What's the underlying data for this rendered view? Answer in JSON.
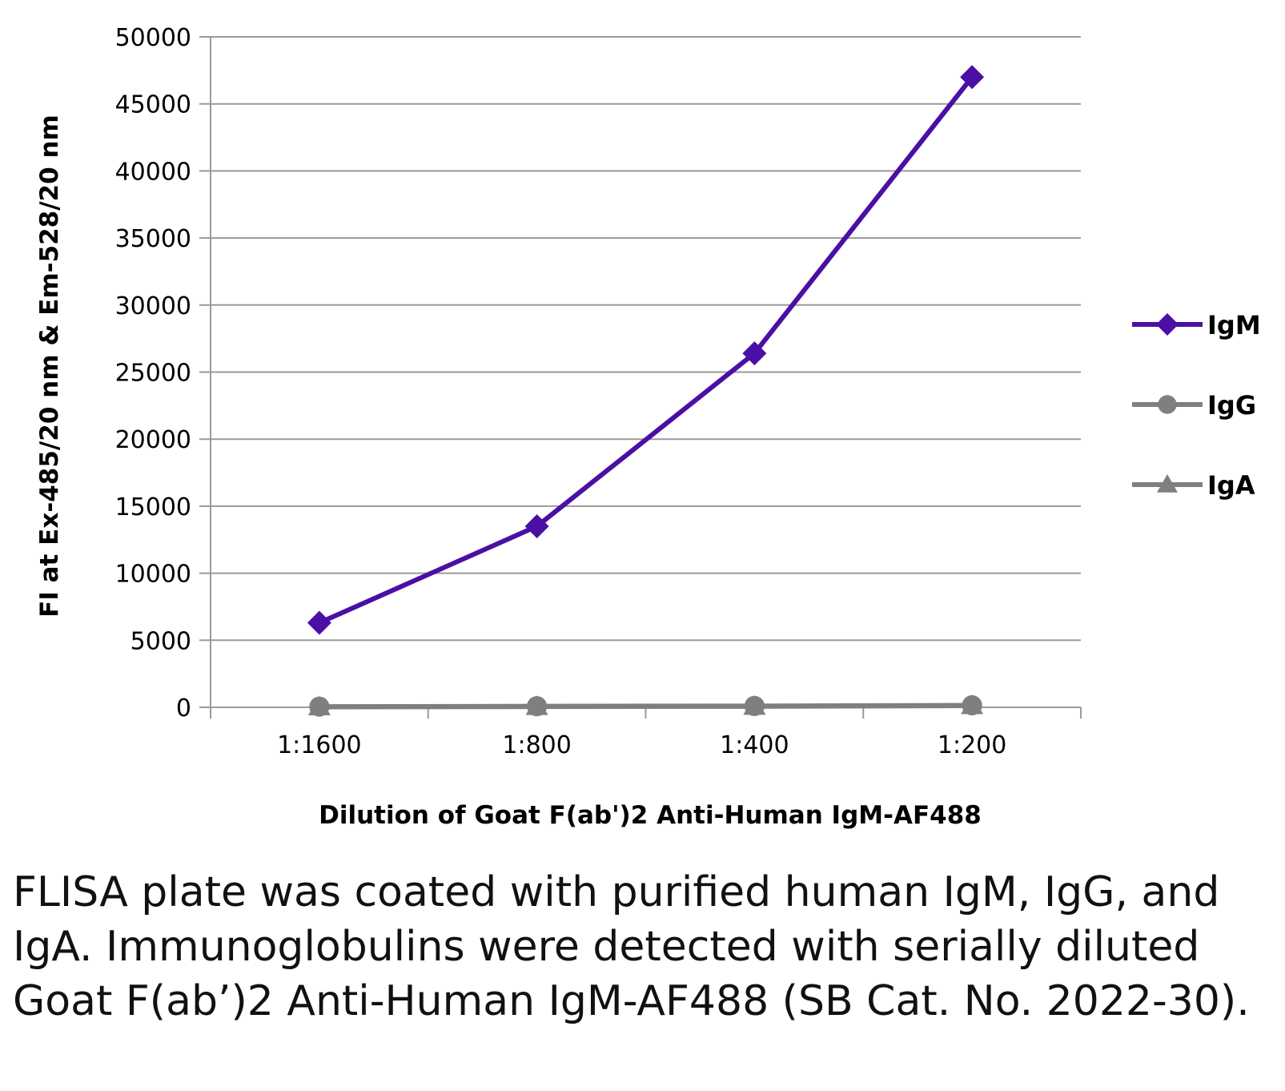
{
  "chart_data": {
    "type": "line",
    "categories": [
      "1:1600",
      "1:800",
      "1:400",
      "1:200"
    ],
    "series": [
      {
        "name": "IgM",
        "values": [
          6300,
          13500,
          26400,
          47000
        ],
        "color": "#4B0FA5",
        "marker": "diamond"
      },
      {
        "name": "IgG",
        "values": [
          50,
          80,
          100,
          150
        ],
        "color": "#7F7F7F",
        "marker": "circle"
      },
      {
        "name": "IgA",
        "values": [
          30,
          50,
          70,
          120
        ],
        "color": "#7F7F7F",
        "marker": "triangle"
      }
    ],
    "xlabel": "Dilution of Goat F(ab')2 Anti-Human IgM-AF488",
    "ylabel": "FI at Ex-485/20 nm & Em-528/20 nm",
    "ylim": [
      0,
      50000
    ],
    "yticks": [
      "0",
      "5000",
      "10000",
      "15000",
      "20000",
      "25000",
      "30000",
      "35000",
      "40000",
      "45000",
      "50000"
    ],
    "grid": true,
    "legend_position": "right"
  },
  "caption": "FLISA plate was coated with purified human IgM, IgG, and IgA.  Immunoglobulins were detected with serially diluted Goat F(ab’)2 Anti-Human IgM-AF488 (SB Cat. No. 2022-30)."
}
